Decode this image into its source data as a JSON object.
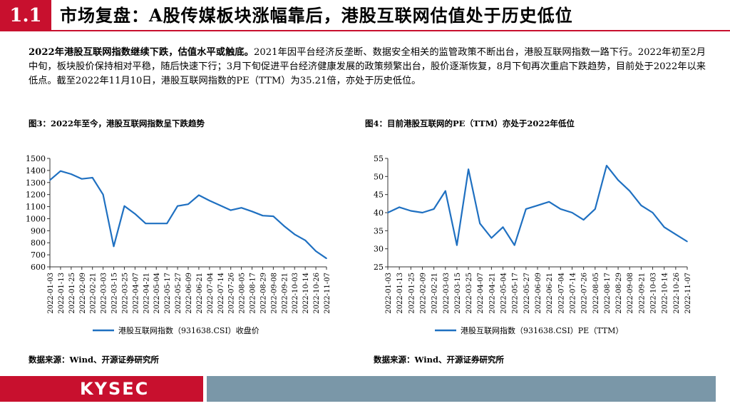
{
  "header": {
    "section_number": "1.1",
    "title": "市场复盘：A股传媒板块涨幅靠后，港股互联网估值处于历史低位"
  },
  "paragraph": {
    "bold_lead": "2022年港股互联网指数继续下跌，估值水平或触底。",
    "body": "2021年因平台经济反垄断、数据安全相关的监管政策不断出台，港股互联网指数一路下行。2022年初至2月中旬，板块股价保持相对平稳，随后快速下行；3月下旬促进平台经济健康发展的政策频繁出台，股价逐渐恢复，8月下旬再次重启下跌趋势，目前处于2022年以来低点。截至2022年11月10日，港股互联网指数的PE（TTM）为35.21倍，亦处于历史低位。"
  },
  "figures": [
    {
      "title": "图3：2022年至今，港股互联网指数呈下跌趋势",
      "source": "数据来源：Wind、开源证券研究所"
    },
    {
      "title": "图4：目前港股互联网的PE（TTM）亦处于2022年低位",
      "source": "数据来源：Wind、开源证券研究所"
    }
  ],
  "chart_data": [
    {
      "type": "line",
      "x": [
        "2022-01-03",
        "2022-01-13",
        "2022-01-25",
        "2022-02-09",
        "2022-02-21",
        "2022-03-03",
        "2022-03-15",
        "2022-03-25",
        "2022-04-07",
        "2022-04-21",
        "2022-05-04",
        "2022-05-17",
        "2022-05-27",
        "2022-06-09",
        "2022-06-21",
        "2022-07-04",
        "2022-07-14",
        "2022-07-26",
        "2022-08-05",
        "2022-08-17",
        "2022-08-29",
        "2022-09-08",
        "2022-09-21",
        "2022-10-03",
        "2022-10-14",
        "2022-10-26",
        "2022-11-07"
      ],
      "series": [
        {
          "name": "港股互联网指数（931638.CSI）收盘价",
          "values": [
            1320,
            1395,
            1370,
            1330,
            1340,
            1200,
            770,
            1105,
            1040,
            960,
            960,
            960,
            1105,
            1120,
            1195,
            1150,
            1110,
            1070,
            1090,
            1060,
            1025,
            1020,
            940,
            870,
            820,
            730,
            670
          ],
          "color": "#1f70c1"
        }
      ],
      "ylim": [
        600,
        1500
      ],
      "yticks": [
        600,
        700,
        800,
        900,
        1000,
        1100,
        1200,
        1300,
        1400,
        1500
      ],
      "legend": "bottom"
    },
    {
      "type": "line",
      "x": [
        "2022-01-03",
        "2022-01-13",
        "2022-01-25",
        "2022-02-09",
        "2022-02-21",
        "2022-03-03",
        "2022-03-15",
        "2022-03-25",
        "2022-04-07",
        "2022-04-21",
        "2022-05-04",
        "2022-05-17",
        "2022-05-27",
        "2022-06-09",
        "2022-06-21",
        "2022-07-04",
        "2022-07-14",
        "2022-07-26",
        "2022-08-05",
        "2022-08-17",
        "2022-08-29",
        "2022-09-08",
        "2022-09-21",
        "2022-10-03",
        "2022-10-14",
        "2022-10-26",
        "2022-11-07"
      ],
      "series": [
        {
          "name": "港股互联网指数（931638.CSI）PE（TTM）",
          "values": [
            40,
            41.5,
            40.5,
            40,
            41,
            46,
            31,
            52,
            37,
            33,
            36,
            31,
            41,
            42,
            43,
            41,
            40,
            38,
            41,
            53,
            49,
            46,
            42,
            40,
            36,
            34,
            32
          ],
          "color": "#1f70c1"
        }
      ],
      "ylim": [
        25,
        55
      ],
      "yticks": [
        25,
        30,
        35,
        40,
        45,
        50,
        55
      ],
      "legend": "bottom"
    }
  ],
  "footer": {
    "logo": "KYSEC"
  }
}
